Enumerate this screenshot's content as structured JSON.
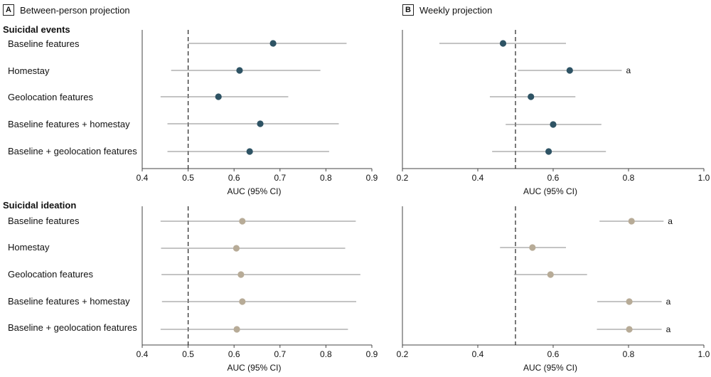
{
  "panels": {
    "a": {
      "letter": "A",
      "title": "Between-person projection"
    },
    "b": {
      "letter": "B",
      "title": "Weekly projection"
    }
  },
  "sections": [
    {
      "label": "Suicidal events"
    },
    {
      "label": "Suicidal ideation"
    }
  ],
  "rows": [
    "Baseline features",
    "Homestay",
    "Geolocation features",
    "Baseline features + homestay",
    "Baseline + geolocation features"
  ],
  "colors": {
    "events": "#2e5364",
    "ideation": "#b7ab97",
    "line": "#8a8a8a",
    "axis": "#444444"
  },
  "chart_data": [
    {
      "type": "scatter",
      "id": "A-events",
      "panel": "A",
      "outcome": "Suicidal events",
      "xlabel": "AUC (95% CI)",
      "xlim": [
        0.4,
        0.9
      ],
      "ticks": [
        0.4,
        0.5,
        0.6,
        0.7,
        0.8,
        0.9
      ],
      "tick_labels": [
        "0.4",
        "0.5",
        "0.6",
        "0.7",
        "0.8",
        "0.9"
      ],
      "reference_line": 0.5,
      "categories": [
        "Baseline features",
        "Homestay",
        "Geolocation features",
        "Baseline features + homestay",
        "Baseline + geolocation features"
      ],
      "values": [
        0.685,
        0.612,
        0.566,
        0.657,
        0.634
      ],
      "ci_low": [
        0.5,
        0.463,
        0.44,
        0.455,
        0.455
      ],
      "ci_high": [
        0.845,
        0.788,
        0.718,
        0.828,
        0.807
      ],
      "markers": [
        "",
        "",
        "",
        "",
        ""
      ]
    },
    {
      "type": "scatter",
      "id": "B-events",
      "panel": "B",
      "outcome": "Suicidal events",
      "xlabel": "AUC (95% CI)",
      "xlim": [
        0.2,
        1.0
      ],
      "ticks": [
        0.2,
        0.4,
        0.6,
        0.8,
        1.0
      ],
      "tick_labels": [
        "0.2",
        "0.4",
        "0.6",
        "0.8",
        "1.0"
      ],
      "reference_line": 0.5,
      "categories": [
        "Baseline features",
        "Homestay",
        "Geolocation features",
        "Baseline features + homestay",
        "Baseline + geolocation features"
      ],
      "values": [
        0.467,
        0.644,
        0.541,
        0.6,
        0.588
      ],
      "ci_low": [
        0.298,
        0.506,
        0.432,
        0.474,
        0.438
      ],
      "ci_high": [
        0.634,
        0.782,
        0.659,
        0.728,
        0.74
      ],
      "markers": [
        "",
        "a",
        "",
        "",
        ""
      ]
    },
    {
      "type": "scatter",
      "id": "A-ideation",
      "panel": "A",
      "outcome": "Suicidal ideation",
      "xlabel": "AUC (95% CI)",
      "xlim": [
        0.4,
        0.9
      ],
      "ticks": [
        0.4,
        0.5,
        0.6,
        0.7,
        0.8,
        0.9
      ],
      "tick_labels": [
        "0.4",
        "0.5",
        "0.6",
        "0.7",
        "0.8",
        "0.9"
      ],
      "reference_line": 0.5,
      "categories": [
        "Baseline features",
        "Homestay",
        "Geolocation features",
        "Baseline features + homestay",
        "Baseline + geolocation features"
      ],
      "values": [
        0.618,
        0.605,
        0.615,
        0.618,
        0.606
      ],
      "ci_low": [
        0.44,
        0.441,
        0.442,
        0.443,
        0.44
      ],
      "ci_high": [
        0.865,
        0.842,
        0.875,
        0.866,
        0.848
      ],
      "markers": [
        "",
        "",
        "",
        "",
        ""
      ]
    },
    {
      "type": "scatter",
      "id": "B-ideation",
      "panel": "B",
      "outcome": "Suicidal ideation",
      "xlabel": "AUC (95% CI)",
      "xlim": [
        0.2,
        1.0
      ],
      "ticks": [
        0.2,
        0.4,
        0.6,
        0.8,
        1.0
      ],
      "tick_labels": [
        "0.2",
        "0.4",
        "0.6",
        "0.8",
        "1.0"
      ],
      "reference_line": 0.5,
      "categories": [
        "Baseline features",
        "Homestay",
        "Geolocation features",
        "Baseline features + homestay",
        "Baseline + geolocation features"
      ],
      "values": [
        0.808,
        0.545,
        0.593,
        0.802,
        0.802
      ],
      "ci_low": [
        0.723,
        0.459,
        0.496,
        0.717,
        0.716
      ],
      "ci_high": [
        0.893,
        0.634,
        0.69,
        0.888,
        0.888
      ],
      "markers": [
        "a",
        "",
        "",
        "a",
        "a"
      ]
    }
  ]
}
